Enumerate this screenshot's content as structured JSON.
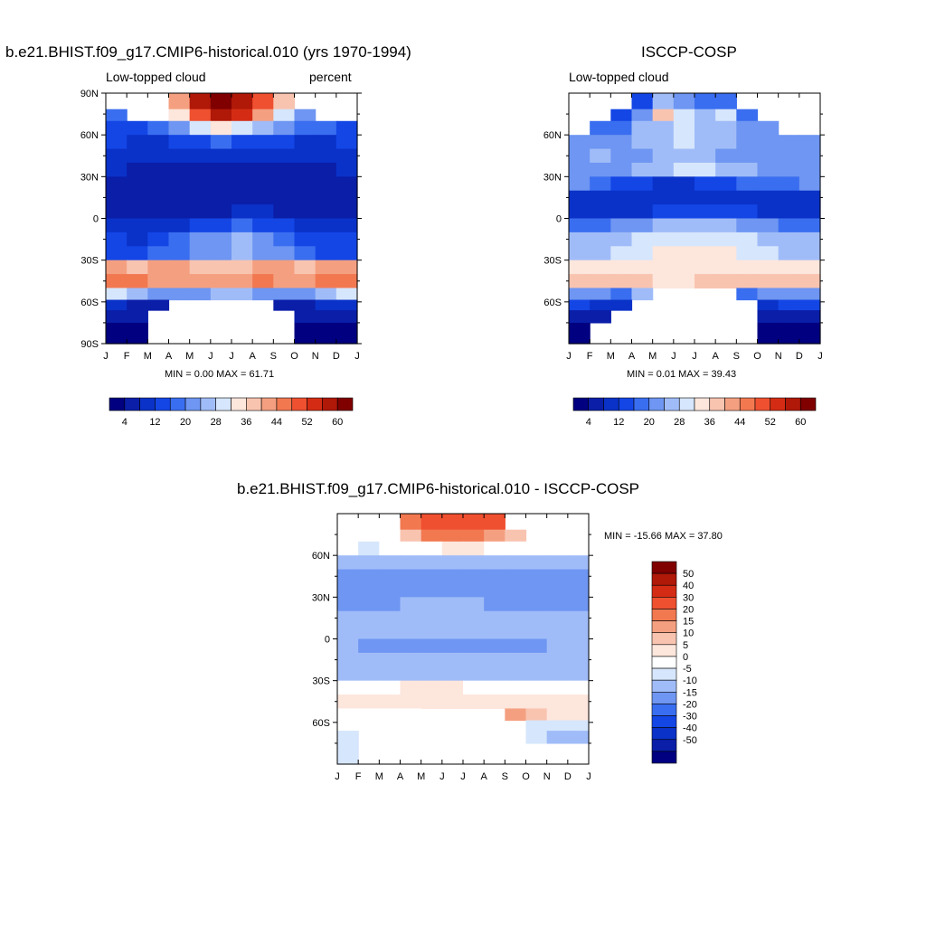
{
  "colors": {
    "seq": [
      "#000080",
      "#0a1ea8",
      "#0a32c8",
      "#1446e6",
      "#3a6ef0",
      "#6e96f2",
      "#a0bcf8",
      "#d6e6fc",
      "#fde6dc",
      "#f8c4b0",
      "#f4a080",
      "#f27850",
      "#ef5030",
      "#d42c14",
      "#b01808",
      "#800000"
    ],
    "diff": [
      "#000080",
      "#0a1ea8",
      "#0a32c8",
      "#1446e6",
      "#3a6ef0",
      "#6e96f2",
      "#a0bcf8",
      "#d6e6fc",
      "#ffffff",
      "#fde6dc",
      "#f8c4b0",
      "#f4a080",
      "#f27850",
      "#ef5030",
      "#d42c14",
      "#b01808",
      "#800000"
    ]
  },
  "panels": {
    "model": {
      "title": "b.e21.BHIST.f09_g17.CMIP6-historical.010 (yrs 1970-1994)",
      "left_label": "Low-topped cloud",
      "right_label": "percent",
      "minmax": "MIN =   0.00 MAX =  61.71",
      "y_labels": [
        "90N",
        "60N",
        "30N",
        "0",
        "30S",
        "60S",
        "90S"
      ],
      "x_labels": [
        "J",
        "F",
        "M",
        "A",
        "M",
        "J",
        "J",
        "A",
        "S",
        "O",
        "N",
        "D",
        "J"
      ]
    },
    "obs": {
      "title": "ISCCP-COSP",
      "left_label": "Low-topped cloud",
      "minmax": "MIN =   0.01 MAX =  39.43",
      "y_labels": [
        "60N",
        "30N",
        "0",
        "30S",
        "60S"
      ],
      "x_labels": [
        "J",
        "F",
        "M",
        "A",
        "M",
        "J",
        "J",
        "A",
        "S",
        "O",
        "N",
        "D",
        "J"
      ]
    },
    "diff": {
      "title": "b.e21.BHIST.f09_g17.CMIP6-historical.010 - ISCCP-COSP",
      "minmax": "MIN = -15.66 MAX =  37.80",
      "y_labels": [
        "60N",
        "30N",
        "0",
        "30S",
        "60S"
      ],
      "x_labels": [
        "J",
        "F",
        "M",
        "A",
        "M",
        "J",
        "J",
        "A",
        "S",
        "O",
        "N",
        "D",
        "J"
      ]
    }
  },
  "colorbar_seq": {
    "labels": [
      "4",
      "12",
      "20",
      "28",
      "36",
      "44",
      "52",
      "60"
    ]
  },
  "colorbar_diff": {
    "labels": [
      "50",
      "40",
      "30",
      "20",
      "15",
      "10",
      "5",
      "0",
      "-5",
      "-10",
      "-15",
      "-20",
      "-30",
      "-40",
      "-50"
    ]
  },
  "chart_data": [
    {
      "type": "heatmap",
      "title": "b.e21.BHIST.f09_g17.CMIP6-historical.010 (yrs 1970-1994)",
      "xlabel": "",
      "ylabel": "",
      "x": [
        "J",
        "F",
        "M",
        "A",
        "M",
        "J",
        "J",
        "A",
        "S",
        "O",
        "N",
        "D"
      ],
      "y": [
        82,
        75,
        65,
        55,
        45,
        35,
        25,
        15,
        5,
        -5,
        -15,
        -25,
        -35,
        -45,
        -55,
        -62,
        -70,
        -80
      ],
      "units": "percent",
      "levels": [
        4,
        8,
        12,
        16,
        20,
        24,
        28,
        32,
        36,
        40,
        44,
        48,
        52,
        56,
        60
      ],
      "values": [
        [
          null,
          null,
          null,
          40,
          58,
          60,
          58,
          48,
          36,
          null,
          null,
          null
        ],
        [
          16,
          null,
          null,
          32,
          50,
          56,
          52,
          40,
          30,
          22,
          null,
          null
        ],
        [
          14,
          14,
          18,
          22,
          30,
          34,
          30,
          26,
          22,
          18,
          16,
          14
        ],
        [
          12,
          10,
          10,
          12,
          14,
          16,
          14,
          12,
          12,
          10,
          10,
          12
        ],
        [
          9,
          8,
          8,
          8,
          9,
          10,
          9,
          8,
          8,
          8,
          9,
          9
        ],
        [
          8,
          7,
          6,
          6,
          6,
          7,
          7,
          6,
          6,
          6,
          7,
          8
        ],
        [
          5,
          4,
          4,
          5,
          5,
          6,
          6,
          5,
          4,
          4,
          4,
          5
        ],
        [
          4,
          4,
          4,
          4,
          4,
          4,
          4,
          4,
          4,
          4,
          4,
          4
        ],
        [
          5,
          5,
          5,
          6,
          7,
          7,
          8,
          8,
          7,
          6,
          5,
          5
        ],
        [
          10,
          9,
          9,
          11,
          13,
          15,
          16,
          14,
          12,
          10,
          10,
          11
        ],
        [
          12,
          11,
          12,
          16,
          20,
          22,
          24,
          20,
          16,
          13,
          12,
          12
        ],
        [
          14,
          14,
          16,
          18,
          20,
          22,
          24,
          22,
          20,
          17,
          15,
          14
        ],
        [
          40,
          38,
          40,
          42,
          38,
          36,
          38,
          40,
          40,
          38,
          42,
          40
        ],
        [
          44,
          44,
          42,
          42,
          40,
          40,
          42,
          44,
          42,
          40,
          44,
          44
        ],
        [
          28,
          24,
          22,
          20,
          22,
          24,
          24,
          22,
          20,
          22,
          26,
          28
        ],
        [
          8,
          6,
          4,
          null,
          null,
          null,
          null,
          null,
          5,
          6,
          8,
          8
        ],
        [
          4,
          4,
          null,
          null,
          null,
          null,
          null,
          null,
          null,
          4,
          4,
          4
        ],
        [
          2,
          2,
          null,
          null,
          null,
          null,
          null,
          null,
          null,
          2,
          2,
          2
        ]
      ]
    },
    {
      "type": "heatmap",
      "title": "ISCCP-COSP",
      "xlabel": "",
      "ylabel": "",
      "x": [
        "J",
        "F",
        "M",
        "A",
        "M",
        "J",
        "J",
        "A",
        "S",
        "O",
        "N",
        "D"
      ],
      "y": [
        82,
        75,
        65,
        55,
        45,
        35,
        25,
        15,
        5,
        -5,
        -15,
        -25,
        -35,
        -45,
        -55,
        -62,
        -70,
        -80
      ],
      "units": "percent",
      "levels": [
        4,
        8,
        12,
        16,
        20,
        24,
        28,
        32,
        36,
        40,
        44,
        48,
        52,
        56,
        60
      ],
      "values": [
        [
          null,
          null,
          null,
          14,
          24,
          20,
          16,
          16,
          null,
          null,
          null,
          null
        ],
        [
          null,
          null,
          12,
          20,
          36,
          30,
          26,
          28,
          18,
          null,
          null,
          null
        ],
        [
          null,
          16,
          18,
          24,
          26,
          28,
          26,
          24,
          22,
          20,
          null,
          null
        ],
        [
          20,
          20,
          22,
          24,
          26,
          28,
          26,
          24,
          22,
          20,
          20,
          20
        ],
        [
          22,
          24,
          22,
          22,
          24,
          26,
          24,
          22,
          22,
          22,
          22,
          22
        ],
        [
          20,
          20,
          22,
          24,
          26,
          28,
          28,
          26,
          24,
          22,
          20,
          20
        ],
        [
          20,
          16,
          14,
          12,
          10,
          10,
          12,
          14,
          16,
          16,
          18,
          20
        ],
        [
          10,
          9,
          9,
          9,
          10,
          10,
          10,
          10,
          9,
          9,
          9,
          10
        ],
        [
          9,
          9,
          10,
          11,
          12,
          13,
          14,
          13,
          12,
          10,
          9,
          9
        ],
        [
          18,
          18,
          20,
          22,
          24,
          26,
          26,
          24,
          22,
          20,
          18,
          18
        ],
        [
          24,
          24,
          26,
          28,
          30,
          30,
          30,
          30,
          28,
          26,
          24,
          24
        ],
        [
          26,
          26,
          28,
          30,
          32,
          32,
          32,
          32,
          30,
          28,
          26,
          26
        ],
        [
          34,
          34,
          34,
          34,
          32,
          32,
          34,
          34,
          34,
          34,
          34,
          34
        ],
        [
          36,
          36,
          36,
          36,
          34,
          34,
          36,
          36,
          36,
          36,
          36,
          36
        ],
        [
          22,
          20,
          18,
          24,
          null,
          null,
          null,
          null,
          18,
          20,
          22,
          22
        ],
        [
          12,
          10,
          8,
          null,
          null,
          null,
          null,
          null,
          null,
          10,
          12,
          12
        ],
        [
          6,
          4,
          null,
          null,
          null,
          null,
          null,
          null,
          null,
          4,
          4,
          6
        ],
        [
          2,
          null,
          null,
          null,
          null,
          null,
          null,
          null,
          null,
          2,
          2,
          2
        ]
      ]
    },
    {
      "type": "heatmap",
      "title": "b.e21.BHIST.f09_g17.CMIP6-historical.010 - ISCCP-COSP",
      "xlabel": "",
      "ylabel": "",
      "x": [
        "J",
        "F",
        "M",
        "A",
        "M",
        "J",
        "J",
        "A",
        "S",
        "O",
        "N",
        "D"
      ],
      "y": [
        82,
        75,
        65,
        55,
        45,
        35,
        25,
        15,
        5,
        -5,
        -15,
        -25,
        -35,
        -45,
        -55,
        -62,
        -70,
        -80
      ],
      "levels": [
        -50,
        -40,
        -30,
        -20,
        -15,
        -10,
        -5,
        0,
        5,
        10,
        15,
        20,
        30,
        40,
        50
      ],
      "values": [
        [
          null,
          null,
          null,
          26,
          34,
          36,
          38,
          34,
          null,
          null,
          null,
          null
        ],
        [
          null,
          null,
          3,
          12,
          20,
          26,
          28,
          16,
          12,
          null,
          null,
          null
        ],
        [
          2,
          -1,
          0,
          2,
          4,
          8,
          8,
          4,
          2,
          0,
          null,
          2
        ],
        [
          -6,
          -8,
          -10,
          -10,
          -10,
          -10,
          -10,
          -10,
          -8,
          -8,
          -8,
          -6
        ],
        [
          -12,
          -12,
          -12,
          -12,
          -12,
          -12,
          -12,
          -12,
          -12,
          -12,
          -12,
          -12
        ],
        [
          -12,
          -13,
          -14,
          -14,
          -14,
          -14,
          -14,
          -14,
          -13,
          -13,
          -12,
          -12
        ],
        [
          -13,
          -12,
          -11,
          -10,
          -8,
          -8,
          -10,
          -11,
          -12,
          -12,
          -13,
          -13
        ],
        [
          -8,
          -7,
          -6,
          -6,
          -6,
          -6,
          -6,
          -6,
          -7,
          -7,
          -8,
          -8
        ],
        [
          -8,
          -8,
          -8,
          -8,
          -8,
          -8,
          -8,
          -8,
          -8,
          -8,
          -8,
          -8
        ],
        [
          -10,
          -11,
          -12,
          -12,
          -12,
          -12,
          -12,
          -12,
          -12,
          -11,
          -10,
          -10
        ],
        [
          -10,
          -10,
          -10,
          -10,
          -10,
          -10,
          -10,
          -10,
          -10,
          -10,
          -10,
          -10
        ],
        [
          -8,
          -8,
          -8,
          -8,
          -8,
          -8,
          -8,
          -8,
          -8,
          -8,
          -8,
          -8
        ],
        [
          3,
          3,
          4,
          5,
          5,
          5,
          4,
          3,
          3,
          3,
          3,
          3
        ],
        [
          5,
          6,
          7,
          8,
          8,
          8,
          8,
          8,
          7,
          6,
          6,
          5
        ],
        [
          4,
          4,
          3,
          2,
          null,
          null,
          null,
          null,
          16,
          12,
          8,
          6
        ],
        [
          3,
          2,
          2,
          null,
          null,
          null,
          null,
          null,
          null,
          -2,
          -2,
          -2
        ],
        [
          -4,
          null,
          null,
          null,
          null,
          null,
          null,
          null,
          null,
          -4,
          -6,
          -6
        ],
        [
          -2,
          null,
          null,
          null,
          null,
          null,
          null,
          null,
          null,
          null,
          null,
          null
        ]
      ]
    }
  ]
}
